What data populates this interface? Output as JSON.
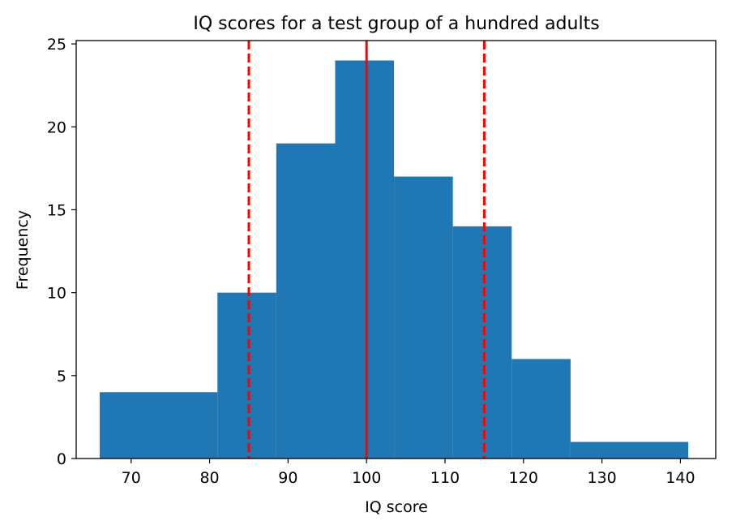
{
  "chart_data": {
    "type": "bar",
    "title": "IQ scores for a test group of a hundred adults",
    "xlabel": "IQ score",
    "ylabel": "Frequency",
    "xlim": [
      63,
      144.5
    ],
    "ylim": [
      0,
      25.2
    ],
    "xticks": [
      70,
      80,
      90,
      100,
      110,
      120,
      130,
      140
    ],
    "yticks": [
      0,
      5,
      10,
      15,
      20,
      25
    ],
    "grid": false,
    "bar_color": "#1f77b4",
    "bins": [
      {
        "x0": 66,
        "x1": 81,
        "count": 4
      },
      {
        "x0": 81,
        "x1": 88.5,
        "count": 10
      },
      {
        "x0": 88.5,
        "x1": 96,
        "count": 19
      },
      {
        "x0": 96,
        "x1": 103.5,
        "count": 24
      },
      {
        "x0": 103.5,
        "x1": 111,
        "count": 17
      },
      {
        "x0": 111,
        "x1": 118.5,
        "count": 14
      },
      {
        "x0": 118.5,
        "x1": 126,
        "count": 6
      },
      {
        "x0": 126,
        "x1": 141,
        "count": 1
      }
    ],
    "reference_lines": [
      {
        "x": 85,
        "style": "dashed",
        "color": "#ff0000"
      },
      {
        "x": 100,
        "style": "solid",
        "color": "#ff0000"
      },
      {
        "x": 115,
        "style": "dashed",
        "color": "#ff0000"
      }
    ]
  }
}
